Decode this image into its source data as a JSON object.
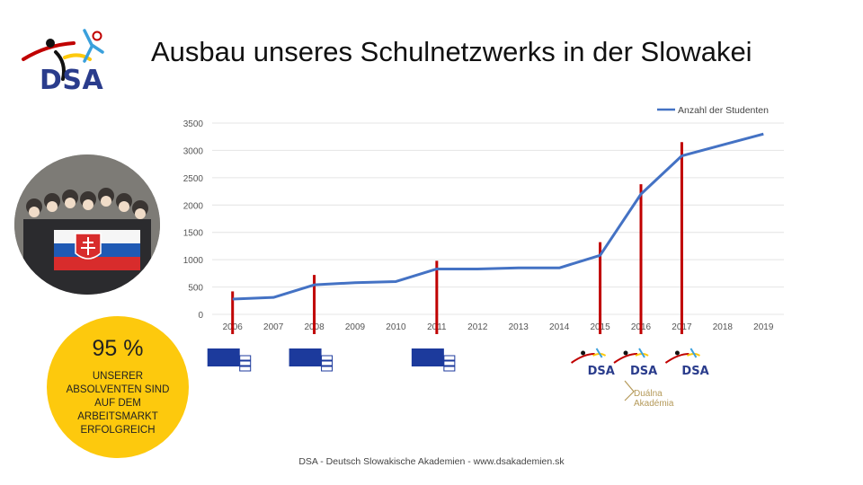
{
  "header": {
    "title": "Ausbau unseres Schulnetzwerks in der Slowakei",
    "logo_text": "DSA"
  },
  "badge": {
    "percent": "95 %",
    "lines": [
      "UNSERER",
      "ABSOLVENTEN SIND",
      "AUF DEM",
      "ARBEITSMARKT",
      "ERFOLGREICH"
    ]
  },
  "footer": {
    "text": "DSA - Deutsch Slowakische Akademien - www.dsakademien.sk"
  },
  "markers": {
    "dsa_label": "DSA",
    "dual_label_1": "Duálna",
    "dual_label_2": "Akadémia"
  },
  "colors": {
    "line": "#4472c4",
    "marker": "#c00000",
    "badge": "#fdc90d",
    "logo_blue": "#2a3c8c"
  },
  "chart_data": {
    "type": "line",
    "categories": [
      "2006",
      "2007",
      "2008",
      "2009",
      "2010",
      "2011",
      "2012",
      "2013",
      "2014",
      "2015",
      "2016",
      "2017",
      "2018",
      "2019"
    ],
    "series": [
      {
        "name": "Anzahl der Studenten",
        "values": [
          280,
          310,
          540,
          580,
          600,
          830,
          830,
          850,
          850,
          1080,
          2200,
          2900,
          3100,
          3300
        ]
      }
    ],
    "event_years": [
      "2006",
      "2008",
      "2011",
      "2015",
      "2016",
      "2017"
    ],
    "event_values": [
      420,
      720,
      980,
      1320,
      2380,
      3150
    ],
    "yticks": [
      0,
      500,
      1000,
      1500,
      2000,
      2500,
      3000,
      3500
    ],
    "ylim": [
      0,
      3500
    ],
    "grid": true,
    "legend_position": "top-right",
    "title": "",
    "xlabel": "",
    "ylabel": ""
  }
}
